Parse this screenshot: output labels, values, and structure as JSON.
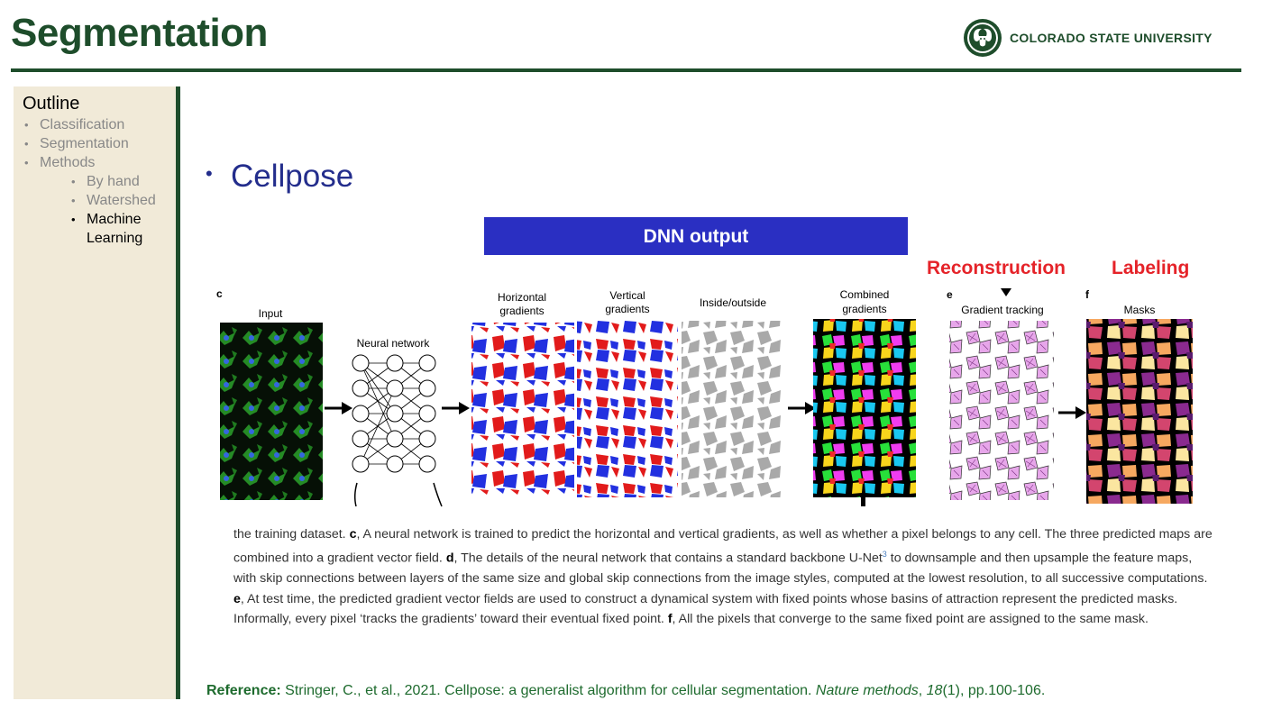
{
  "slide": {
    "title": "Segmentation",
    "logo_text": "COLORADO STATE UNIVERSITY"
  },
  "sidebar": {
    "title": "Outline",
    "items": [
      {
        "label": "Classification"
      },
      {
        "label": "Segmentation"
      },
      {
        "label": "Methods"
      },
      {
        "label": "By hand"
      },
      {
        "label": "Watershed"
      },
      {
        "label": "Machine Learning"
      }
    ]
  },
  "main": {
    "bullet": "Cellpose",
    "dnn_banner": "DNN output",
    "reconstruction_label": "Reconstruction",
    "labeling_label": "Labeling"
  },
  "figure": {
    "panel_c": "c",
    "panel_e": "e",
    "panel_f": "f",
    "input": "Input",
    "neural_network": "Neural network",
    "horizontal_1": "Horizontal",
    "horizontal_2": "gradients",
    "vertical_1": "Vertical",
    "vertical_2": "gradients",
    "inside_outside": "Inside/outside",
    "combined_1": "Combined",
    "combined_2": "gradients",
    "gradient_tracking": "Gradient tracking",
    "masks": "Masks"
  },
  "caption": {
    "t1": "the training dataset. ",
    "c": "c",
    "t2": ", A neural network is trained to predict the horizontal and vertical gradients, as well as whether a pixel belongs to any cell. The three predicted maps are combined into a gradient vector field. ",
    "d": "d",
    "t3": ", The details of the neural network that contains a standard backbone U-Net",
    "sup": "3",
    "t4": " to downsample and then upsample the feature maps, with skip connections between layers of the same size and global skip connections from the image styles, computed at the lowest resolution, to all successive computations. ",
    "e": "e",
    "t5": ", At test time, the predicted gradient vector fields are used to construct a dynamical system with fixed points whose basins of attraction represent the predicted masks. Informally, every pixel ‘tracks the gradients’ toward their eventual fixed point. ",
    "f": "f",
    "t6": ", All the pixels that converge to the same fixed point are assigned to the same mask."
  },
  "reference": {
    "label": "Reference:",
    "text": " Stringer, C., et al., 2021. Cellpose: a generalist algorithm for cellular segmentation. ",
    "journal": "Nature methods",
    "sep": ", ",
    "volume": "18",
    "rest": "(1), pp.100-106."
  },
  "colors": {
    "csu_green": "#1e4d2b",
    "bullet_blue": "#232d8c",
    "banner_blue": "#2a2fc2",
    "label_red": "#e52329",
    "reference_green": "#1e6b2e"
  }
}
